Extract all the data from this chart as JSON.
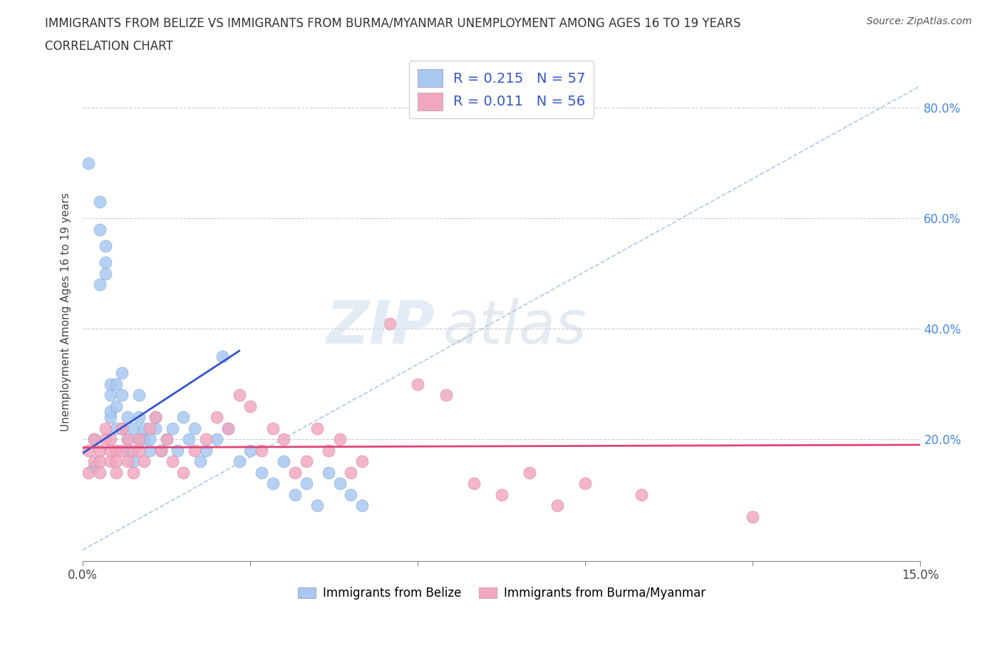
{
  "title_line1": "IMMIGRANTS FROM BELIZE VS IMMIGRANTS FROM BURMA/MYANMAR UNEMPLOYMENT AMONG AGES 16 TO 19 YEARS",
  "title_line2": "CORRELATION CHART",
  "source": "Source: ZipAtlas.com",
  "ylabel": "Unemployment Among Ages 16 to 19 years",
  "xlim": [
    0.0,
    0.15
  ],
  "ylim": [
    -0.02,
    0.88
  ],
  "ytick_right_labels": [
    "20.0%",
    "40.0%",
    "60.0%",
    "80.0%"
  ],
  "ytick_right_values": [
    0.2,
    0.4,
    0.6,
    0.8
  ],
  "belize_color": "#a8c8f0",
  "burma_color": "#f0a8c0",
  "belize_line_color": "#3355cc",
  "burma_line_color": "#dd4477",
  "diagonal_color": "#99bbdd",
  "legend_belize_R": "0.215",
  "legend_belize_N": "57",
  "legend_burma_R": "0.011",
  "legend_burma_N": "56",
  "belize_scatter_x": [
    0.001,
    0.002,
    0.002,
    0.003,
    0.003,
    0.003,
    0.004,
    0.004,
    0.004,
    0.005,
    0.005,
    0.005,
    0.005,
    0.006,
    0.006,
    0.006,
    0.007,
    0.007,
    0.007,
    0.008,
    0.008,
    0.008,
    0.009,
    0.009,
    0.01,
    0.01,
    0.01,
    0.011,
    0.011,
    0.012,
    0.012,
    0.013,
    0.013,
    0.014,
    0.015,
    0.016,
    0.017,
    0.018,
    0.019,
    0.02,
    0.021,
    0.022,
    0.024,
    0.025,
    0.026,
    0.028,
    0.03,
    0.032,
    0.034,
    0.036,
    0.038,
    0.04,
    0.042,
    0.044,
    0.046,
    0.048,
    0.05
  ],
  "belize_scatter_y": [
    0.7,
    0.15,
    0.2,
    0.58,
    0.63,
    0.48,
    0.52,
    0.5,
    0.55,
    0.28,
    0.3,
    0.24,
    0.25,
    0.22,
    0.26,
    0.3,
    0.22,
    0.28,
    0.32,
    0.2,
    0.24,
    0.18,
    0.22,
    0.16,
    0.2,
    0.24,
    0.28,
    0.2,
    0.22,
    0.18,
    0.2,
    0.22,
    0.24,
    0.18,
    0.2,
    0.22,
    0.18,
    0.24,
    0.2,
    0.22,
    0.16,
    0.18,
    0.2,
    0.35,
    0.22,
    0.16,
    0.18,
    0.14,
    0.12,
    0.16,
    0.1,
    0.12,
    0.08,
    0.14,
    0.12,
    0.1,
    0.08
  ],
  "burma_scatter_x": [
    0.001,
    0.001,
    0.002,
    0.002,
    0.003,
    0.003,
    0.003,
    0.004,
    0.004,
    0.005,
    0.005,
    0.005,
    0.006,
    0.006,
    0.006,
    0.007,
    0.007,
    0.008,
    0.008,
    0.009,
    0.009,
    0.01,
    0.01,
    0.011,
    0.012,
    0.013,
    0.014,
    0.015,
    0.016,
    0.018,
    0.02,
    0.022,
    0.024,
    0.026,
    0.028,
    0.03,
    0.032,
    0.034,
    0.036,
    0.038,
    0.04,
    0.042,
    0.044,
    0.046,
    0.048,
    0.05,
    0.055,
    0.06,
    0.065,
    0.07,
    0.075,
    0.08,
    0.085,
    0.09,
    0.1,
    0.12
  ],
  "burma_scatter_y": [
    0.14,
    0.18,
    0.16,
    0.2,
    0.14,
    0.18,
    0.16,
    0.2,
    0.22,
    0.16,
    0.18,
    0.2,
    0.14,
    0.18,
    0.16,
    0.18,
    0.22,
    0.16,
    0.2,
    0.18,
    0.14,
    0.2,
    0.18,
    0.16,
    0.22,
    0.24,
    0.18,
    0.2,
    0.16,
    0.14,
    0.18,
    0.2,
    0.24,
    0.22,
    0.28,
    0.26,
    0.18,
    0.22,
    0.2,
    0.14,
    0.16,
    0.22,
    0.18,
    0.2,
    0.14,
    0.16,
    0.41,
    0.3,
    0.28,
    0.12,
    0.1,
    0.14,
    0.08,
    0.12,
    0.1,
    0.06
  ],
  "belize_trend_x": [
    0.0,
    0.028
  ],
  "belize_trend_y": [
    0.175,
    0.36
  ],
  "burma_trend_x": [
    0.0,
    0.15
  ],
  "burma_trend_y": [
    0.185,
    0.19
  ],
  "diagonal_trend_x": [
    0.0,
    0.15
  ],
  "diagonal_trend_y": [
    0.0,
    0.84
  ]
}
